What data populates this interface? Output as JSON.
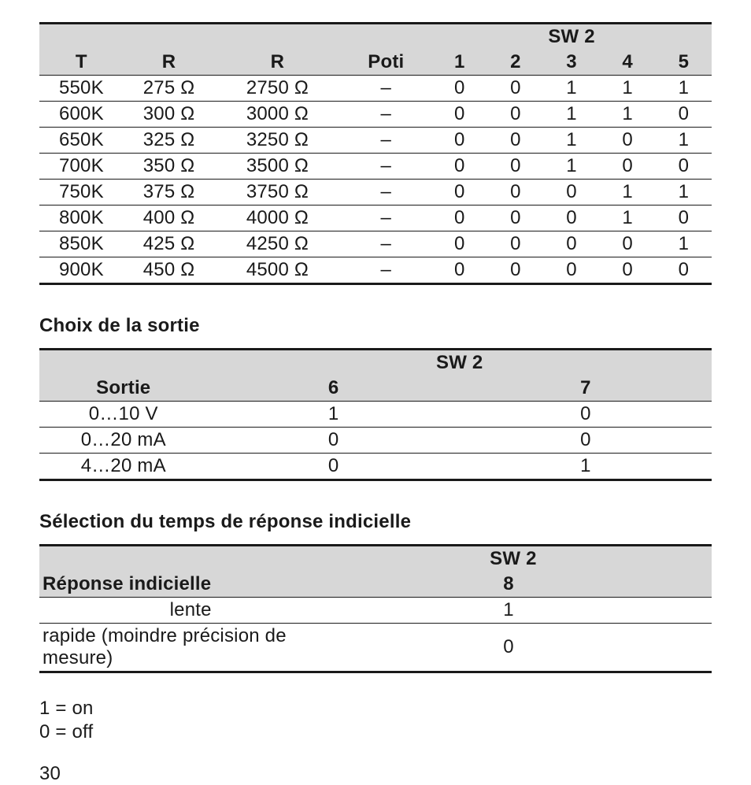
{
  "table1": {
    "sw_group": "SW 2",
    "headers": {
      "t": "T",
      "r1": "R",
      "r2": "R",
      "poti": "Poti",
      "s1": "1",
      "s2": "2",
      "s3": "3",
      "s4": "4",
      "s5": "5"
    },
    "rows": [
      {
        "t": "550K",
        "r1": "275 Ω",
        "r2": "2750 Ω",
        "poti": "–",
        "s1": "0",
        "s2": "0",
        "s3": "1",
        "s4": "1",
        "s5": "1"
      },
      {
        "t": "600K",
        "r1": "300 Ω",
        "r2": "3000 Ω",
        "poti": "–",
        "s1": "0",
        "s2": "0",
        "s3": "1",
        "s4": "1",
        "s5": "0"
      },
      {
        "t": "650K",
        "r1": "325 Ω",
        "r2": "3250 Ω",
        "poti": "–",
        "s1": "0",
        "s2": "0",
        "s3": "1",
        "s4": "0",
        "s5": "1"
      },
      {
        "t": "700K",
        "r1": "350 Ω",
        "r2": "3500 Ω",
        "poti": "–",
        "s1": "0",
        "s2": "0",
        "s3": "1",
        "s4": "0",
        "s5": "0"
      },
      {
        "t": "750K",
        "r1": "375 Ω",
        "r2": "3750 Ω",
        "poti": "–",
        "s1": "0",
        "s2": "0",
        "s3": "0",
        "s4": "1",
        "s5": "1"
      },
      {
        "t": "800K",
        "r1": "400 Ω",
        "r2": "4000 Ω",
        "poti": "–",
        "s1": "0",
        "s2": "0",
        "s3": "0",
        "s4": "1",
        "s5": "0"
      },
      {
        "t": "850K",
        "r1": "425 Ω",
        "r2": "4250 Ω",
        "poti": "–",
        "s1": "0",
        "s2": "0",
        "s3": "0",
        "s4": "0",
        "s5": "1"
      },
      {
        "t": "900K",
        "r1": "450 Ω",
        "r2": "4500 Ω",
        "poti": "–",
        "s1": "0",
        "s2": "0",
        "s3": "0",
        "s4": "0",
        "s5": "0"
      }
    ]
  },
  "section2": {
    "title": "Choix de la sortie",
    "sw_group": "SW 2",
    "headers": {
      "sortie": "Sortie",
      "c6": "6",
      "c7": "7"
    },
    "rows": [
      {
        "sortie": "0…10 V",
        "c6": "1",
        "c7": "0"
      },
      {
        "sortie": "0…20 mA",
        "c6": "0",
        "c7": "0"
      },
      {
        "sortie": "4…20 mA",
        "c6": "0",
        "c7": "1"
      }
    ]
  },
  "section3": {
    "title": "Sélection du temps de réponse indicielle",
    "sw_group": "SW 2",
    "headers": {
      "rep": "Réponse indicielle",
      "c8": "8"
    },
    "rows": [
      {
        "rep": "lente",
        "c8": "1"
      },
      {
        "rep": "rapide (moindre précision de mesure)",
        "c8": "0"
      }
    ]
  },
  "legend": {
    "on": "1 = on",
    "off": "0 = off"
  },
  "page": "30"
}
